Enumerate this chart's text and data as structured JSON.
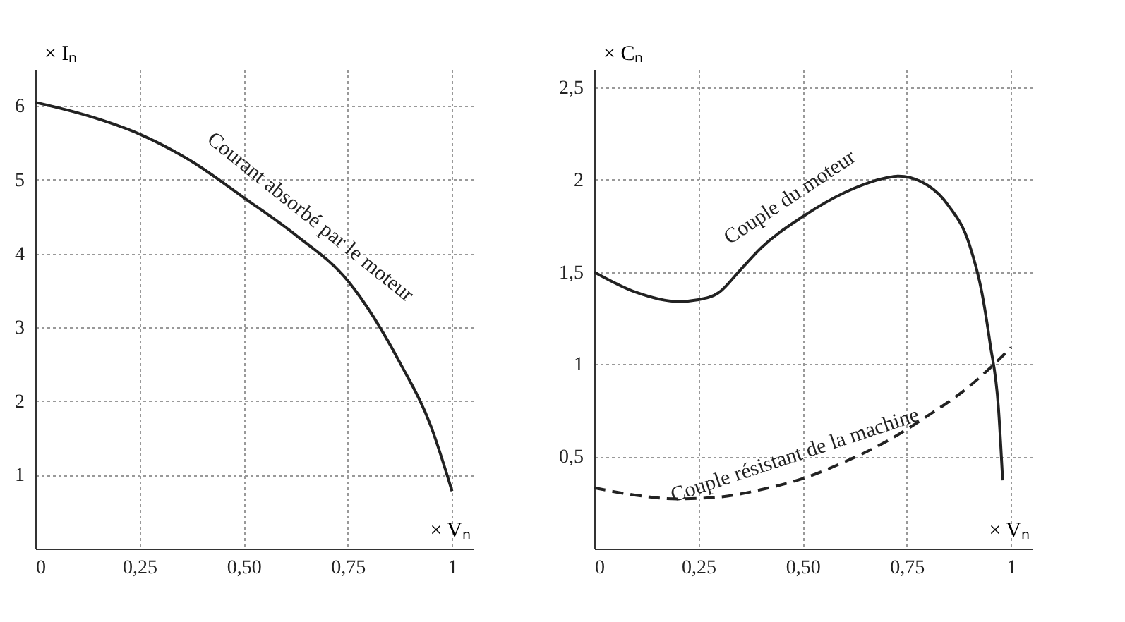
{
  "chart_data": [
    {
      "type": "line",
      "xlabel": "× Vₙ",
      "ylabel": "× Iₙ",
      "xlim": [
        0,
        1.05
      ],
      "ylim": [
        0,
        6.5
      ],
      "xticks": [
        0,
        {
          "value": 0.25,
          "label": "0,25"
        },
        {
          "value": 0.5,
          "label": "0,50"
        },
        {
          "value": 0.75,
          "label": "0,75"
        },
        1
      ],
      "yticks": [
        1,
        2,
        3,
        4,
        5,
        6
      ],
      "grid": true,
      "legend": false,
      "line_style": "solid",
      "series": [
        {
          "name": "Courant absorbé par le moteur",
          "color": "#222222",
          "x": [
            0,
            0.125,
            0.25,
            0.375,
            0.5,
            0.625,
            0.75,
            0.875,
            0.95,
            1.0
          ],
          "values": [
            6.05,
            5.87,
            5.62,
            5.25,
            4.76,
            4.25,
            3.63,
            2.52,
            1.65,
            0.78
          ]
        }
      ]
    },
    {
      "type": "line",
      "xlabel": "× Vₙ",
      "ylabel": "× Cₙ",
      "xlim": [
        0,
        1.05
      ],
      "ylim": [
        0,
        2.6
      ],
      "xticks": [
        0,
        {
          "value": 0.25,
          "label": "0,25"
        },
        {
          "value": 0.5,
          "label": "0,50"
        },
        {
          "value": 0.75,
          "label": "0,75"
        },
        1
      ],
      "yticks": [
        {
          "value": 0.5,
          "label": "0,5"
        },
        1,
        {
          "value": 1.5,
          "label": "1,5"
        },
        2,
        {
          "value": 2.5,
          "label": "2,5"
        }
      ],
      "grid": true,
      "legend": false,
      "series": [
        {
          "name": "Couple du moteur",
          "color": "#222222",
          "line_style": "solid",
          "x": [
            0,
            0.1,
            0.2,
            0.25,
            0.3,
            0.35,
            0.4,
            0.5,
            0.6,
            0.7,
            0.73,
            0.8,
            0.85,
            0.9,
            0.93,
            0.95,
            0.97,
            0.98
          ],
          "values": [
            1.5,
            1.39,
            1.34,
            1.35,
            1.39,
            1.51,
            1.63,
            1.8,
            1.93,
            2.01,
            2.02,
            1.97,
            1.86,
            1.65,
            1.39,
            1.11,
            0.76,
            0.37
          ]
        },
        {
          "name": "Couple résistant de la machine",
          "color": "#222222",
          "line_style": "dashed",
          "x": [
            0,
            0.1,
            0.2,
            0.3,
            0.4,
            0.5,
            0.6,
            0.7,
            0.8,
            0.9,
            0.95,
            1.0
          ],
          "values": [
            0.33,
            0.29,
            0.27,
            0.28,
            0.32,
            0.38,
            0.47,
            0.58,
            0.72,
            0.88,
            0.98,
            1.09
          ]
        }
      ]
    }
  ]
}
